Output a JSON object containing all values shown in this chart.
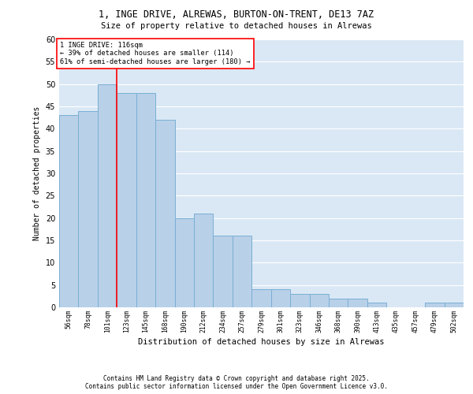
{
  "title1": "1, INGE DRIVE, ALREWAS, BURTON-ON-TRENT, DE13 7AZ",
  "title2": "Size of property relative to detached houses in Alrewas",
  "xlabel": "Distribution of detached houses by size in Alrewas",
  "ylabel": "Number of detached properties",
  "categories": [
    "56sqm",
    "78sqm",
    "101sqm",
    "123sqm",
    "145sqm",
    "168sqm",
    "190sqm",
    "212sqm",
    "234sqm",
    "257sqm",
    "279sqm",
    "301sqm",
    "323sqm",
    "346sqm",
    "368sqm",
    "390sqm",
    "413sqm",
    "435sqm",
    "457sqm",
    "479sqm",
    "502sqm"
  ],
  "bar_values": [
    43,
    44,
    50,
    48,
    48,
    42,
    20,
    21,
    16,
    16,
    4,
    4,
    3,
    3,
    2,
    2,
    1,
    0,
    0,
    1,
    1
  ],
  "bar_color": "#b8d0e8",
  "bar_edge_color": "#7aafd4",
  "vline_x_index": 2.5,
  "vline_color": "red",
  "annotation_text": "1 INGE DRIVE: 116sqm\n← 39% of detached houses are smaller (114)\n61% of semi-detached houses are larger (180) →",
  "bg_color": "#dae8f5",
  "grid_color": "white",
  "ylim": [
    0,
    60
  ],
  "yticks": [
    0,
    5,
    10,
    15,
    20,
    25,
    30,
    35,
    40,
    45,
    50,
    55,
    60
  ],
  "footer": "Contains HM Land Registry data © Crown copyright and database right 2025.\nContains public sector information licensed under the Open Government Licence v3.0."
}
